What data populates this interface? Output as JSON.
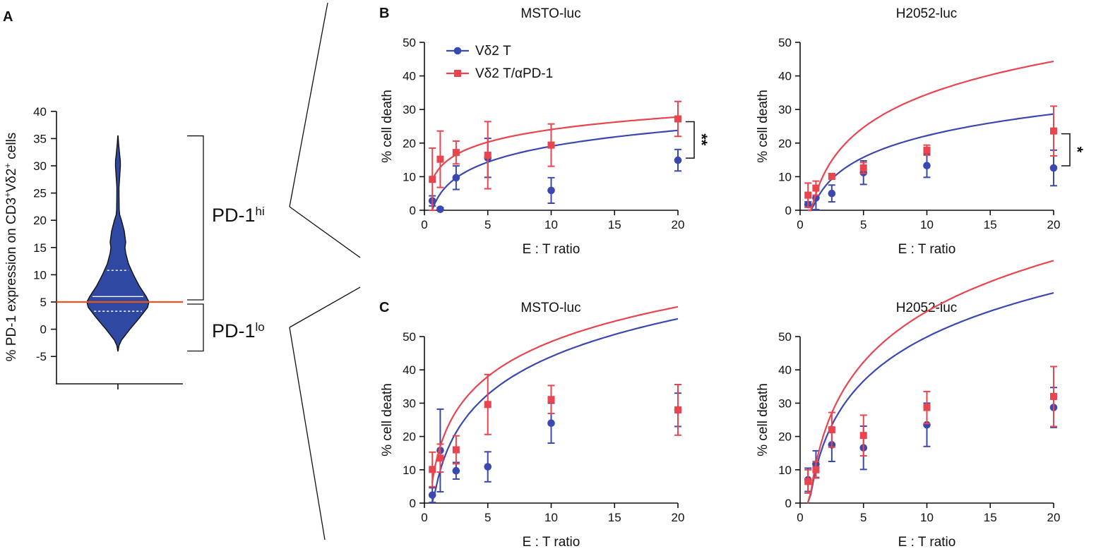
{
  "colors": {
    "blue": "#3a48b0",
    "red": "#e8454e",
    "violin_fill": "#2f49a2",
    "threshold": "#e8561c"
  },
  "chart_data": [
    {
      "panel": "A",
      "type": "violin",
      "ylabel_parts": [
        "% PD-1 expression on CD3",
        "+",
        "Vδ2",
        "+",
        " cells"
      ],
      "yticks": [
        -5,
        0,
        5,
        10,
        15,
        20,
        25,
        30,
        35,
        40
      ],
      "ylim": [
        -10,
        40
      ],
      "violin": {
        "min": -4,
        "max": 35.5,
        "median": 6,
        "q1": 3.3,
        "q3": 10.8,
        "profile": [
          [
            -4,
            0.2
          ],
          [
            -3,
            1.5
          ],
          [
            -2,
            5
          ],
          [
            0,
            17
          ],
          [
            2,
            30
          ],
          [
            4,
            42
          ],
          [
            5,
            44
          ],
          [
            6,
            40
          ],
          [
            8,
            30
          ],
          [
            10,
            22
          ],
          [
            12,
            15
          ],
          [
            14,
            11
          ],
          [
            15,
            10
          ],
          [
            16,
            11
          ],
          [
            18,
            9
          ],
          [
            20,
            5
          ],
          [
            21,
            2.5
          ],
          [
            22,
            1.8
          ],
          [
            24,
            1.6
          ],
          [
            26,
            1.5
          ],
          [
            28,
            2.5
          ],
          [
            30,
            3.5
          ],
          [
            31,
            3.4
          ],
          [
            32,
            2.5
          ],
          [
            34,
            1
          ],
          [
            35.5,
            0.2
          ]
        ]
      },
      "threshold": 5,
      "groups": [
        {
          "label": "PD-1",
          "sup": "hi",
          "from": 5,
          "to": 35.5
        },
        {
          "label": "PD-1",
          "sup": "lo",
          "from": -4,
          "to": 5
        }
      ]
    },
    {
      "panel": "B",
      "type": "line",
      "title": "MSTO-luc",
      "xlabel": "E : T ratio",
      "ylabel": "% cell death",
      "xlim": [
        0,
        20
      ],
      "ylim": [
        0,
        50
      ],
      "xticks": [
        0,
        5,
        10,
        15,
        20
      ],
      "yticks": [
        0,
        10,
        20,
        30,
        40,
        50
      ],
      "legend": [
        "Vδ2 T",
        "Vδ2 T/αPD-1"
      ],
      "series": [
        {
          "name": "Vδ2 T",
          "x": [
            0.625,
            1.25,
            2.5,
            5,
            10,
            20
          ],
          "y": [
            2.8,
            0.3,
            9.7,
            15.6,
            5.9,
            14.9
          ],
          "err": [
            1.5,
            0.5,
            3.5,
            5.8,
            3.8,
            3.2
          ],
          "fit": [
            3.4,
            6.8
          ]
        },
        {
          "name": "Vδ2 T/αPD-1",
          "x": [
            0.625,
            1.25,
            2.5,
            5,
            10,
            20
          ],
          "y": [
            9.2,
            15.2,
            17.2,
            16.4,
            19.4,
            27.2
          ],
          "err": [
            9.3,
            8.4,
            3.4,
            10,
            6.3,
            5.2
          ],
          "fit": [
            11.6,
            5.4
          ]
        }
      ],
      "significance": "**"
    },
    {
      "panel": "",
      "type": "line",
      "title": "H2052-luc",
      "xlabel": "E : T ratio",
      "ylabel": "% cell death",
      "xlim": [
        0,
        20
      ],
      "ylim": [
        0,
        50
      ],
      "xticks": [
        0,
        5,
        10,
        15,
        20
      ],
      "yticks": [
        0,
        10,
        20,
        30,
        40,
        50
      ],
      "series": [
        {
          "name": "Vδ2 T",
          "x": [
            0.625,
            1.25,
            2.5,
            5,
            10,
            20
          ],
          "y": [
            1.7,
            3.7,
            5.0,
            11.2,
            13.3,
            12.6
          ],
          "err": [
            0.8,
            3.5,
            2.5,
            3.5,
            3.5,
            5.3
          ],
          "fit": [
            0.8,
            9.3
          ]
        },
        {
          "name": "Vδ2 T/αPD-1",
          "x": [
            0.625,
            1.25,
            2.5,
            5,
            10,
            20
          ],
          "y": [
            4.5,
            6.6,
            10.1,
            12.6,
            17.9,
            23.6
          ],
          "err": [
            3.6,
            2.1,
            0.8,
            1.6,
            1.5,
            7.4
          ],
          "fit": [
            1.8,
            14.2
          ]
        }
      ],
      "significance": "*"
    },
    {
      "panel": "C",
      "type": "line",
      "title": "MSTO-luc",
      "xlabel": "E : T ratio",
      "ylabel": "% cell death",
      "xlim": [
        0,
        20
      ],
      "ylim": [
        0,
        50
      ],
      "xticks": [
        0,
        5,
        10,
        15,
        20
      ],
      "yticks": [
        0,
        10,
        20,
        30,
        40,
        50
      ],
      "series": [
        {
          "name": "Vδ2 T",
          "x": [
            0.625,
            1.25,
            2.5,
            5,
            10,
            20
          ],
          "y": [
            2.4,
            15.8,
            9.7,
            10.9,
            24.0,
            28.0
          ],
          "err": [
            2.2,
            12.4,
            2.5,
            4.5,
            6,
            5
          ],
          "fit": [
            6.2,
            16.4
          ]
        },
        {
          "name": "Vδ2 T/αPD-1",
          "x": [
            0.625,
            1.25,
            2.5,
            5,
            10,
            20
          ],
          "y": [
            10.1,
            13.5,
            16.0,
            29.6,
            31.1,
            28.0
          ],
          "err": [
            5.2,
            4.2,
            4.2,
            9,
            4.2,
            7.6
          ],
          "fit": [
            13.7,
            15.1
          ]
        }
      ]
    },
    {
      "panel": "",
      "type": "line",
      "title": "H2052-luc",
      "xlabel": "E : T ratio",
      "ylabel": "% cell death",
      "xlim": [
        0,
        20
      ],
      "ylim": [
        0,
        50
      ],
      "xticks": [
        0,
        5,
        10,
        15,
        20
      ],
      "yticks": [
        0,
        10,
        20,
        30,
        40,
        50
      ],
      "series": [
        {
          "name": "Vδ2 T",
          "x": [
            0.625,
            1.25,
            2.5,
            5,
            10,
            20
          ],
          "y": [
            7.0,
            11.7,
            17.5,
            16.6,
            23.5,
            28.7
          ],
          "err": [
            3.5,
            4,
            5,
            6.5,
            6.5,
            6
          ],
          "fit": [
            5.9,
            19.1
          ]
        },
        {
          "name": "Vδ2 T/αPD-1",
          "x": [
            0.625,
            1.25,
            2.5,
            5,
            10,
            20
          ],
          "y": [
            6.5,
            10.0,
            22.0,
            20.3,
            28.7,
            32.0
          ],
          "err": [
            3.5,
            2.5,
            5.2,
            6.1,
            4.8,
            9
          ],
          "fit": [
            6.9,
            22.0
          ]
        }
      ]
    }
  ]
}
